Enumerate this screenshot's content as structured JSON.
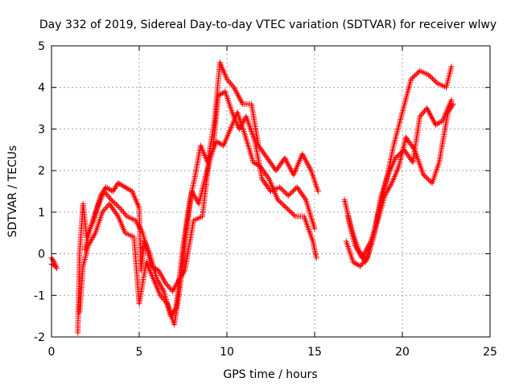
{
  "chart_data": {
    "type": "scatter",
    "title": "Day 332 of 2019, Sidereal Day-to-day VTEC variation (SDTVAR) for receiver wlwy",
    "xlabel": "GPS time / hours",
    "ylabel": "SDTVAR / TECUs",
    "xlim": [
      0,
      25
    ],
    "ylim": [
      -2,
      5
    ],
    "xticks": [
      "0",
      "5",
      "10",
      "15",
      "20",
      "25"
    ],
    "yticks": [
      "-2",
      "-1",
      "0",
      "1",
      "2",
      "3",
      "4",
      "5"
    ],
    "grid": true,
    "marker": "plus",
    "marker_color": "#ff0000",
    "series": [
      {
        "values": [
          {
            "x": 0.0,
            "y": -0.1
          },
          {
            "x": 0.15,
            "y": -0.2
          },
          {
            "x": 0.3,
            "y": -0.35
          },
          {
            "x": 1.5,
            "y": -1.9
          },
          {
            "x": 1.55,
            "y": -1.0
          },
          {
            "x": 1.6,
            "y": 0.0
          },
          {
            "x": 1.7,
            "y": 0.6
          },
          {
            "x": 1.8,
            "y": 1.2
          },
          {
            "x": 2.0,
            "y": 0.4
          },
          {
            "x": 2.4,
            "y": 0.8
          },
          {
            "x": 2.8,
            "y": 1.4
          },
          {
            "x": 3.1,
            "y": 1.6
          },
          {
            "x": 3.5,
            "y": 1.5
          },
          {
            "x": 3.8,
            "y": 1.7
          },
          {
            "x": 4.2,
            "y": 1.6
          },
          {
            "x": 4.6,
            "y": 1.5
          },
          {
            "x": 5.0,
            "y": 1.1
          },
          {
            "x": 5.1,
            "y": -0.4
          },
          {
            "x": 5.3,
            "y": 0.3
          },
          {
            "x": 5.6,
            "y": 0.0
          },
          {
            "x": 6.0,
            "y": -0.6
          },
          {
            "x": 6.4,
            "y": -0.9
          },
          {
            "x": 6.8,
            "y": -1.5
          },
          {
            "x": 7.1,
            "y": -1.3
          },
          {
            "x": 7.5,
            "y": 0.2
          },
          {
            "x": 7.9,
            "y": 1.3
          },
          {
            "x": 8.2,
            "y": 1.9
          },
          {
            "x": 8.5,
            "y": 2.6
          },
          {
            "x": 8.9,
            "y": 2.2
          },
          {
            "x": 9.3,
            "y": 3.2
          },
          {
            "x": 9.6,
            "y": 4.6
          },
          {
            "x": 10.0,
            "y": 4.2
          },
          {
            "x": 10.4,
            "y": 4.0
          },
          {
            "x": 10.9,
            "y": 3.6
          },
          {
            "x": 11.4,
            "y": 3.6
          },
          {
            "x": 11.8,
            "y": 2.6
          },
          {
            "x": 12.3,
            "y": 2.3
          },
          {
            "x": 12.8,
            "y": 2.0
          },
          {
            "x": 13.3,
            "y": 2.3
          },
          {
            "x": 13.8,
            "y": 1.9
          },
          {
            "x": 14.3,
            "y": 2.4
          },
          {
            "x": 14.8,
            "y": 2.0
          },
          {
            "x": 15.2,
            "y": 1.5
          },
          {
            "x": 16.7,
            "y": 1.3
          },
          {
            "x": 17.1,
            "y": 0.6
          },
          {
            "x": 17.5,
            "y": 0.1
          },
          {
            "x": 17.9,
            "y": -0.2
          },
          {
            "x": 18.3,
            "y": 0.3
          },
          {
            "x": 18.7,
            "y": 1.1
          },
          {
            "x": 19.1,
            "y": 1.8
          },
          {
            "x": 19.5,
            "y": 2.6
          },
          {
            "x": 20.0,
            "y": 3.4
          },
          {
            "x": 20.5,
            "y": 4.2
          },
          {
            "x": 21.0,
            "y": 4.4
          },
          {
            "x": 21.5,
            "y": 4.3
          },
          {
            "x": 22.0,
            "y": 4.1
          },
          {
            "x": 22.5,
            "y": 4.0
          },
          {
            "x": 22.8,
            "y": 4.5
          }
        ]
      },
      {
        "values": [
          {
            "x": 0.0,
            "y": -0.25
          },
          {
            "x": 0.2,
            "y": -0.3
          },
          {
            "x": 1.6,
            "y": -1.4
          },
          {
            "x": 1.8,
            "y": -0.3
          },
          {
            "x": 2.1,
            "y": 0.2
          },
          {
            "x": 2.5,
            "y": 0.5
          },
          {
            "x": 2.9,
            "y": 1.0
          },
          {
            "x": 3.3,
            "y": 1.2
          },
          {
            "x": 3.8,
            "y": 0.9
          },
          {
            "x": 4.2,
            "y": 0.5
          },
          {
            "x": 4.7,
            "y": 0.4
          },
          {
            "x": 5.0,
            "y": -1.2
          },
          {
            "x": 5.4,
            "y": -0.2
          },
          {
            "x": 5.8,
            "y": -0.6
          },
          {
            "x": 6.2,
            "y": -1.0
          },
          {
            "x": 6.6,
            "y": -1.2
          },
          {
            "x": 7.0,
            "y": -1.7
          },
          {
            "x": 7.3,
            "y": -0.9
          },
          {
            "x": 7.7,
            "y": 0.6
          },
          {
            "x": 8.0,
            "y": 1.5
          },
          {
            "x": 8.4,
            "y": 1.2
          },
          {
            "x": 8.8,
            "y": 1.9
          },
          {
            "x": 9.2,
            "y": 2.5
          },
          {
            "x": 9.5,
            "y": 3.8
          },
          {
            "x": 9.9,
            "y": 3.9
          },
          {
            "x": 10.3,
            "y": 3.4
          },
          {
            "x": 10.7,
            "y": 3.0
          },
          {
            "x": 11.1,
            "y": 3.3
          },
          {
            "x": 11.6,
            "y": 2.7
          },
          {
            "x": 12.0,
            "y": 1.8
          },
          {
            "x": 12.5,
            "y": 1.5
          },
          {
            "x": 13.0,
            "y": 1.6
          },
          {
            "x": 13.5,
            "y": 1.4
          },
          {
            "x": 14.0,
            "y": 1.6
          },
          {
            "x": 14.5,
            "y": 1.3
          },
          {
            "x": 15.0,
            "y": 0.6
          },
          {
            "x": 16.8,
            "y": 0.3
          },
          {
            "x": 17.2,
            "y": -0.2
          },
          {
            "x": 17.6,
            "y": -0.3
          },
          {
            "x": 18.0,
            "y": -0.1
          },
          {
            "x": 18.4,
            "y": 0.5
          },
          {
            "x": 18.8,
            "y": 1.4
          },
          {
            "x": 19.2,
            "y": 1.9
          },
          {
            "x": 19.6,
            "y": 2.3
          },
          {
            "x": 20.1,
            "y": 2.5
          },
          {
            "x": 20.6,
            "y": 2.2
          },
          {
            "x": 21.0,
            "y": 3.3
          },
          {
            "x": 21.4,
            "y": 3.5
          },
          {
            "x": 21.9,
            "y": 3.1
          },
          {
            "x": 22.3,
            "y": 3.2
          },
          {
            "x": 22.8,
            "y": 3.7
          }
        ]
      },
      {
        "values": [
          {
            "x": 1.9,
            "y": 0.1
          },
          {
            "x": 2.2,
            "y": 0.6
          },
          {
            "x": 2.6,
            "y": 1.1
          },
          {
            "x": 3.0,
            "y": 1.5
          },
          {
            "x": 3.4,
            "y": 1.3
          },
          {
            "x": 3.9,
            "y": 1.1
          },
          {
            "x": 4.3,
            "y": 0.9
          },
          {
            "x": 4.8,
            "y": 0.8
          },
          {
            "x": 5.2,
            "y": 0.5
          },
          {
            "x": 5.7,
            "y": -0.3
          },
          {
            "x": 6.1,
            "y": -0.4
          },
          {
            "x": 6.5,
            "y": -0.7
          },
          {
            "x": 6.9,
            "y": -0.9
          },
          {
            "x": 7.3,
            "y": -0.6
          },
          {
            "x": 7.6,
            "y": -0.4
          },
          {
            "x": 8.1,
            "y": 0.8
          },
          {
            "x": 8.6,
            "y": 0.9
          },
          {
            "x": 9.0,
            "y": 2.3
          },
          {
            "x": 9.4,
            "y": 2.7
          },
          {
            "x": 9.8,
            "y": 2.6
          },
          {
            "x": 10.2,
            "y": 3.0
          },
          {
            "x": 10.6,
            "y": 3.4
          },
          {
            "x": 11.0,
            "y": 2.9
          },
          {
            "x": 11.5,
            "y": 2.2
          },
          {
            "x": 11.9,
            "y": 2.1
          },
          {
            "x": 12.4,
            "y": 1.8
          },
          {
            "x": 12.9,
            "y": 1.3
          },
          {
            "x": 13.4,
            "y": 1.1
          },
          {
            "x": 13.9,
            "y": 0.9
          },
          {
            "x": 14.4,
            "y": 0.9
          },
          {
            "x": 14.9,
            "y": 0.3
          },
          {
            "x": 15.1,
            "y": -0.1
          },
          {
            "x": 16.9,
            "y": 0.9
          },
          {
            "x": 17.3,
            "y": 0.2
          },
          {
            "x": 17.7,
            "y": -0.1
          },
          {
            "x": 18.2,
            "y": 0.3
          },
          {
            "x": 18.6,
            "y": 0.8
          },
          {
            "x": 19.0,
            "y": 1.4
          },
          {
            "x": 19.4,
            "y": 1.7
          },
          {
            "x": 19.8,
            "y": 2.1
          },
          {
            "x": 20.2,
            "y": 2.8
          },
          {
            "x": 20.7,
            "y": 2.5
          },
          {
            "x": 21.2,
            "y": 1.9
          },
          {
            "x": 21.7,
            "y": 1.7
          },
          {
            "x": 22.1,
            "y": 2.2
          },
          {
            "x": 22.6,
            "y": 3.4
          },
          {
            "x": 22.9,
            "y": 3.6
          }
        ]
      }
    ]
  }
}
